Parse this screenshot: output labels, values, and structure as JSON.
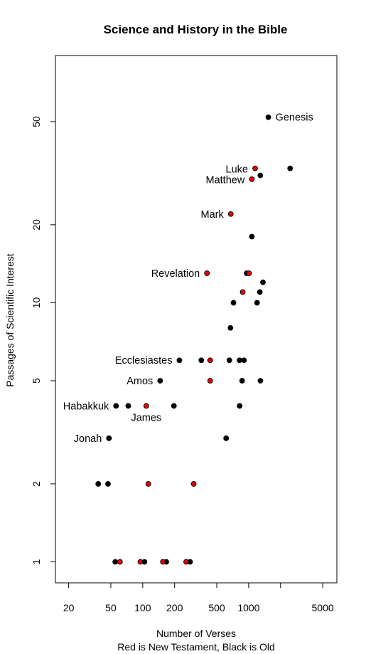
{
  "chart_data": {
    "type": "scatter",
    "title": "Science and History in the Bible",
    "xlabel": "Number of Verses",
    "xlabel_sub": "Red is New Testament, Black is Old",
    "ylabel": "Passages of Scientific Interest",
    "x_scale": "log",
    "y_scale": "log",
    "xlim": [
      15,
      6800
    ],
    "ylim": [
      0.83,
      90
    ],
    "x_ticks": [
      20,
      50,
      100,
      200,
      500,
      1000,
      5000
    ],
    "x_ticks_unlabeled": [
      2000
    ],
    "y_ticks": [
      1,
      2,
      5,
      10,
      20,
      50
    ],
    "colors": {
      "old": "#000000",
      "new": "#ee0000"
    },
    "series": [
      {
        "name": "Old Testament",
        "color": "#000000",
        "points": [
          {
            "x": 1533,
            "y": 52,
            "label": "Genesis"
          },
          {
            "x": 2461,
            "y": 33
          },
          {
            "x": 1288,
            "y": 31
          },
          {
            "x": 1071,
            "y": 18
          },
          {
            "x": 958,
            "y": 13
          },
          {
            "x": 1364,
            "y": 12
          },
          {
            "x": 1274,
            "y": 11
          },
          {
            "x": 719,
            "y": 10
          },
          {
            "x": 1200,
            "y": 10
          },
          {
            "x": 673,
            "y": 8
          },
          {
            "x": 222,
            "y": 6,
            "label": "Ecclesiastes"
          },
          {
            "x": 357,
            "y": 6
          },
          {
            "x": 658,
            "y": 6
          },
          {
            "x": 820,
            "y": 6
          },
          {
            "x": 904,
            "y": 6
          },
          {
            "x": 146,
            "y": 5,
            "label": "Amos"
          },
          {
            "x": 867,
            "y": 5
          },
          {
            "x": 1291,
            "y": 5
          },
          {
            "x": 56,
            "y": 4,
            "label": "Habakkuk"
          },
          {
            "x": 73,
            "y": 4
          },
          {
            "x": 197,
            "y": 4
          },
          {
            "x": 822,
            "y": 4
          },
          {
            "x": 48,
            "y": 3,
            "label": "Jonah"
          },
          {
            "x": 613,
            "y": 3
          },
          {
            "x": 38,
            "y": 2
          },
          {
            "x": 47,
            "y": 2
          },
          {
            "x": 55,
            "y": 1
          },
          {
            "x": 104,
            "y": 1
          },
          {
            "x": 167,
            "y": 1
          },
          {
            "x": 280,
            "y": 1
          }
        ]
      },
      {
        "name": "New Testament",
        "color": "#ee0000",
        "points": [
          {
            "x": 1151,
            "y": 33,
            "label": "Luke"
          },
          {
            "x": 1071,
            "y": 30,
            "label": "Matthew"
          },
          {
            "x": 678,
            "y": 22,
            "label": "Mark"
          },
          {
            "x": 404,
            "y": 13,
            "label": "Revelation"
          },
          {
            "x": 1007,
            "y": 13
          },
          {
            "x": 879,
            "y": 11
          },
          {
            "x": 433,
            "y": 6
          },
          {
            "x": 433,
            "y": 5
          },
          {
            "x": 108,
            "y": 4,
            "label": "James"
          },
          {
            "x": 113,
            "y": 2
          },
          {
            "x": 303,
            "y": 2
          },
          {
            "x": 61,
            "y": 1
          },
          {
            "x": 95,
            "y": 1
          },
          {
            "x": 155,
            "y": 1
          },
          {
            "x": 257,
            "y": 1
          }
        ]
      }
    ]
  }
}
